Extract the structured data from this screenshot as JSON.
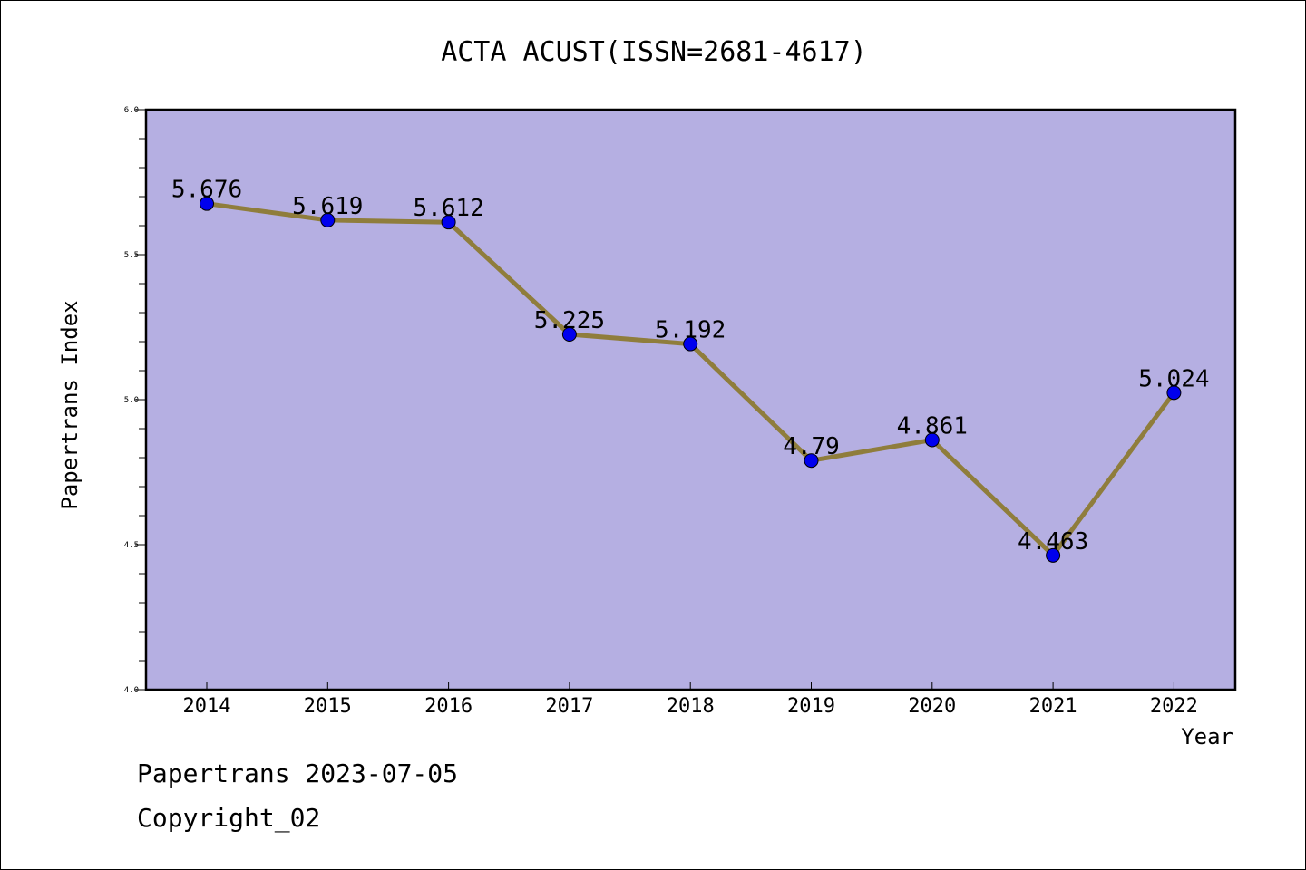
{
  "chart_data": {
    "type": "line",
    "title": "ACTA ACUST(ISSN=2681-4617)",
    "xlabel": "Year",
    "ylabel": "Papertrans Index",
    "categories": [
      "2014",
      "2015",
      "2016",
      "2017",
      "2018",
      "2019",
      "2020",
      "2021",
      "2022"
    ],
    "series": [
      {
        "values": [
          5.676,
          5.619,
          5.612,
          5.225,
          5.192,
          4.79,
          4.861,
          4.463,
          5.024
        ],
        "labels": [
          "5.676",
          "5.619",
          "5.612",
          "5.225",
          "5.192",
          "4.79",
          "4.861",
          "4.463",
          "5.024"
        ]
      }
    ],
    "ylim": [
      4.0,
      6.0
    ],
    "yticks": [
      "4.0",
      "4.5",
      "5.0",
      "5.5",
      "6.0"
    ],
    "grid": false,
    "colors": {
      "plot_background": "#b5afe2",
      "line": "#8f7d3c",
      "marker": "#0000ee",
      "axis": "#000000"
    }
  },
  "footer": {
    "line1": "Papertrans 2023-07-05",
    "line2": "Copyright_02"
  }
}
